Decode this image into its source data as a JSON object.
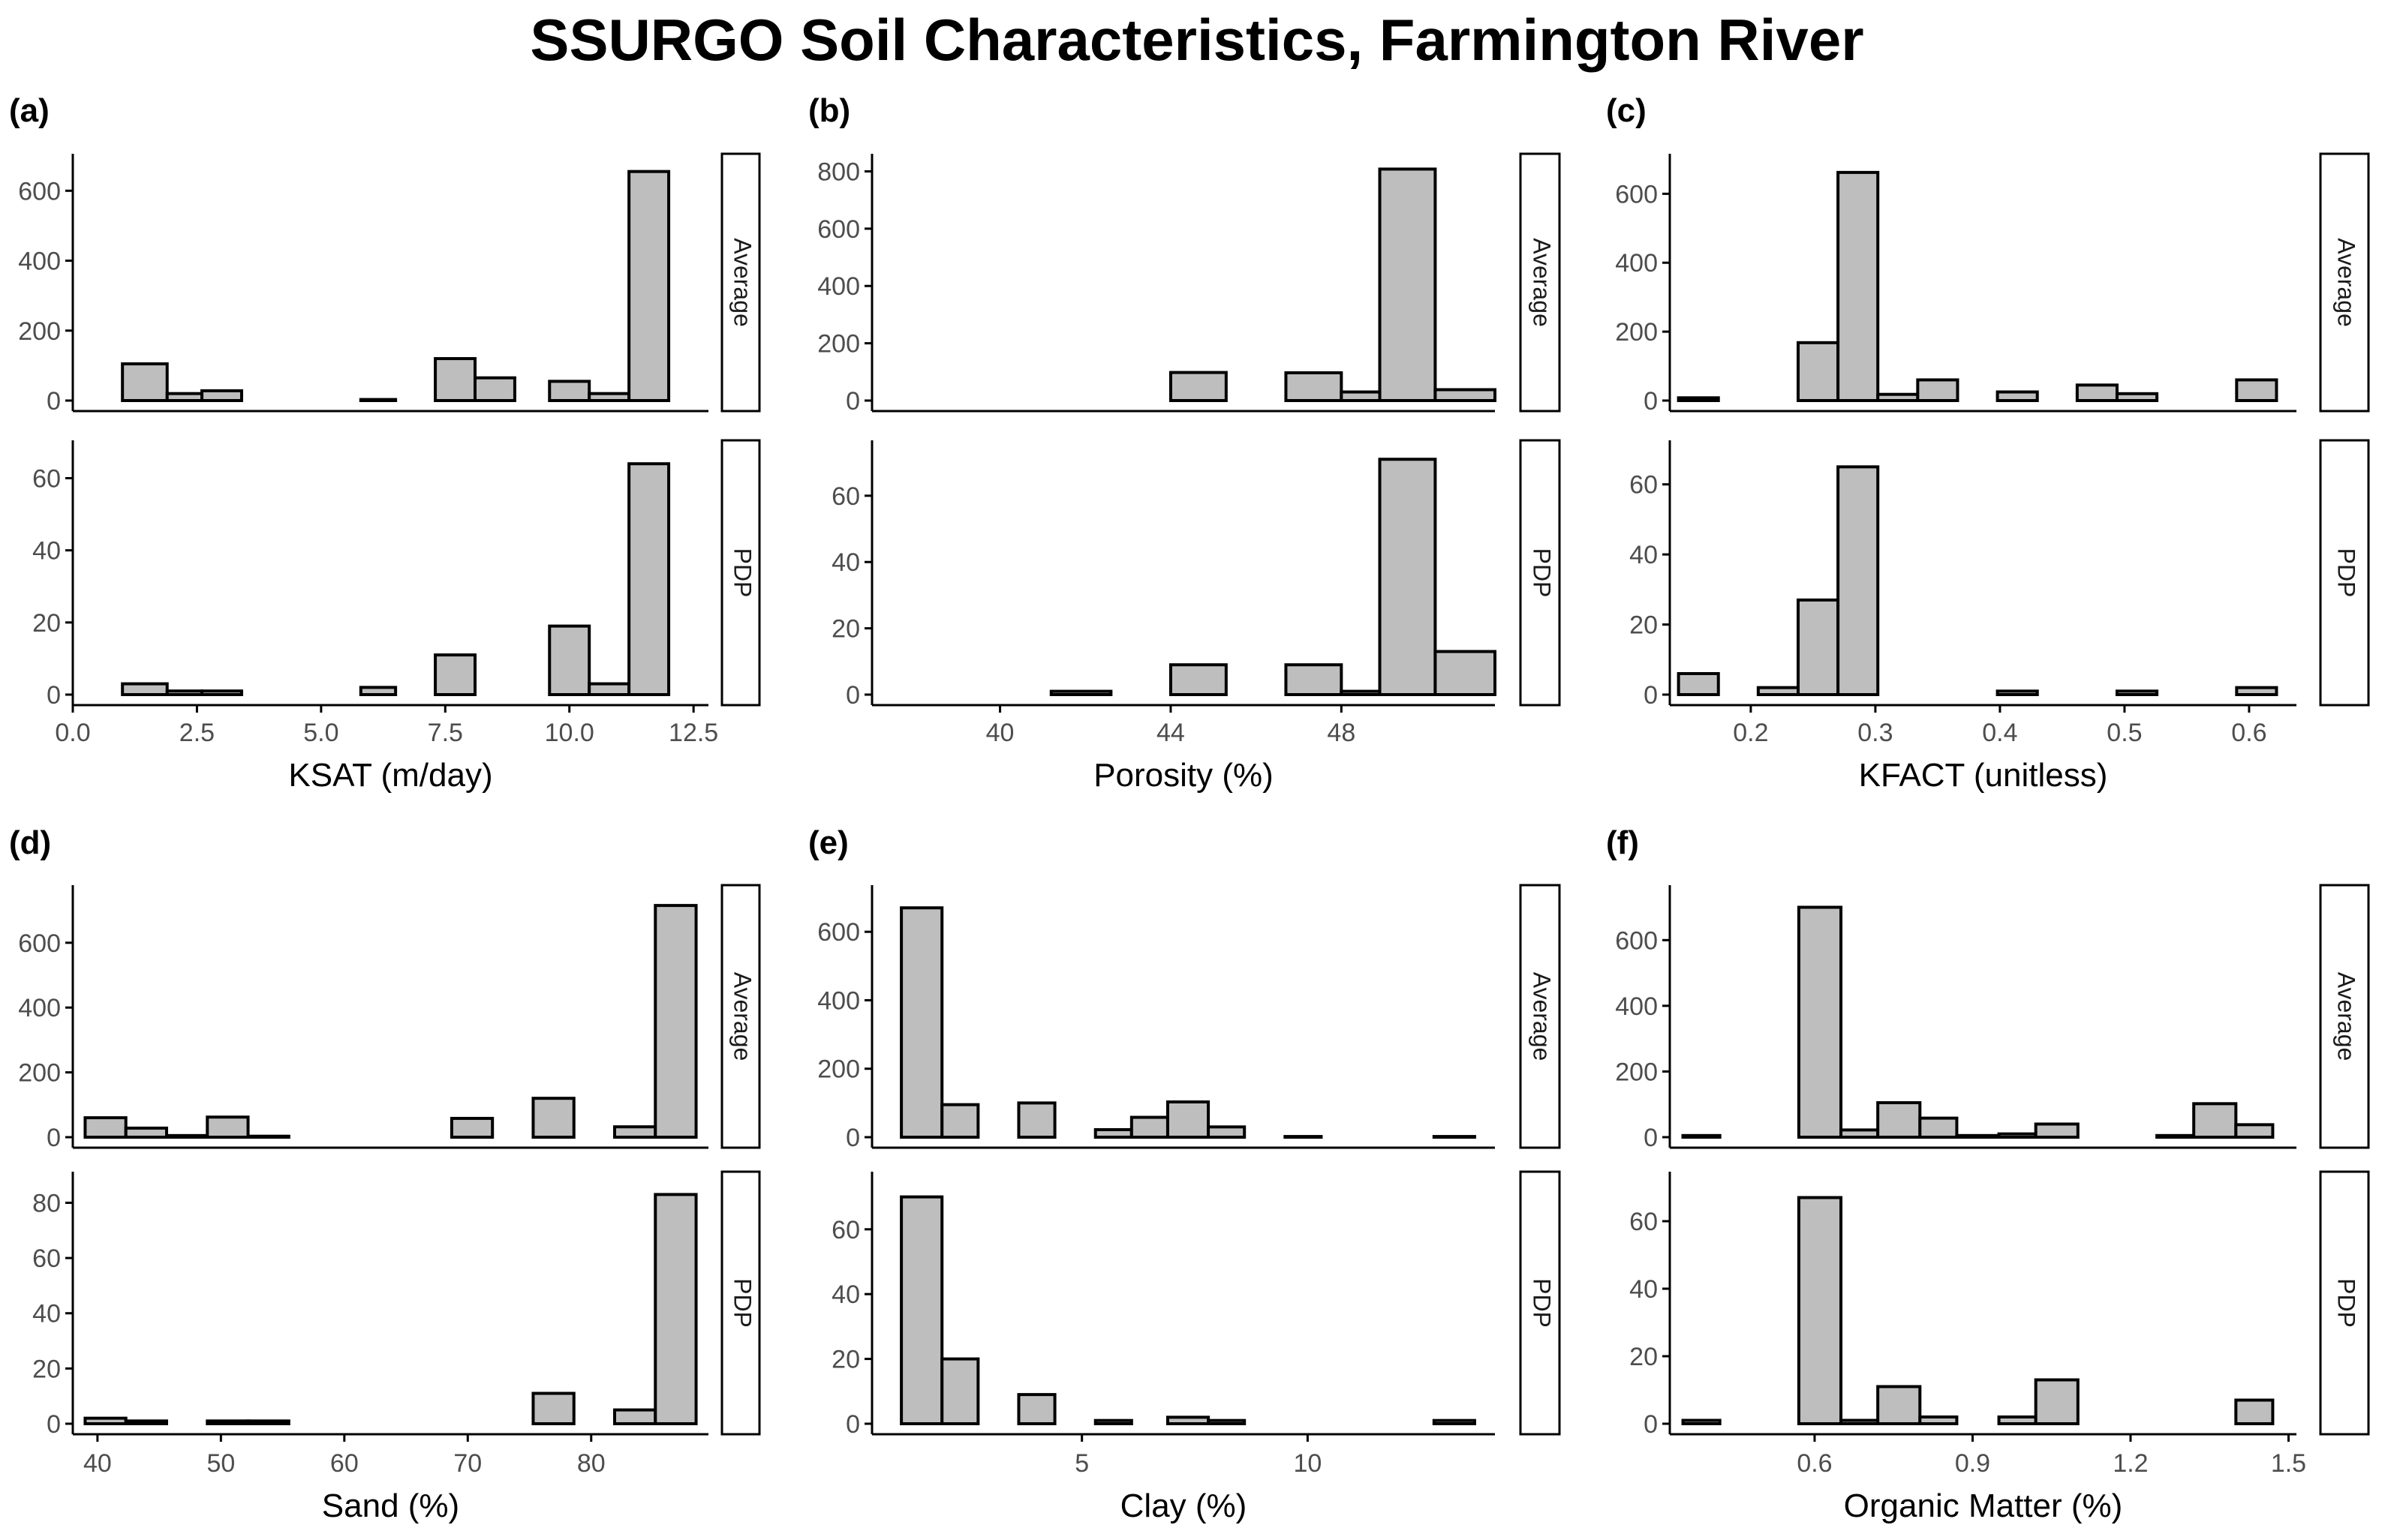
{
  "title": "SSURGO Soil Characteristics, Farmington River",
  "colors": {
    "bar_fill": "#bebebe",
    "bar_stroke": "#000000",
    "axis": "#000000",
    "tick_text": "#4d4d4d"
  },
  "chart_data": [
    {
      "type": "bar",
      "panel_label": "(a)",
      "xlabel": "KSAT (m/day)",
      "xlim": [
        0,
        12.8
      ],
      "xticks": [
        0.0,
        2.5,
        5.0,
        7.5,
        10.0,
        12.5
      ],
      "xtick_labels": [
        "0.0",
        "2.5",
        "5.0",
        "7.5",
        "10.0",
        "12.5"
      ],
      "facets": [
        {
          "strip": "Average",
          "ylim": [
            0,
            680
          ],
          "yticks": [
            0,
            200,
            400,
            600
          ],
          "bins": [
            [
              0.3,
              1.0,
              0
            ],
            [
              1.0,
              1.9,
              105
            ],
            [
              1.9,
              2.6,
              20
            ],
            [
              2.6,
              3.4,
              28
            ],
            [
              3.4,
              4.2,
              0
            ],
            [
              4.2,
              5.0,
              0
            ],
            [
              5.0,
              5.8,
              0
            ],
            [
              5.8,
              6.5,
              3
            ],
            [
              6.5,
              7.3,
              0
            ],
            [
              7.3,
              8.1,
              120
            ],
            [
              8.1,
              8.9,
              65
            ],
            [
              8.9,
              9.6,
              0
            ],
            [
              9.6,
              10.4,
              55
            ],
            [
              10.4,
              11.2,
              20
            ],
            [
              11.2,
              12.0,
              655
            ]
          ]
        },
        {
          "strip": "PDP",
          "ylim": [
            0,
            68
          ],
          "yticks": [
            0,
            20,
            40,
            60
          ],
          "bins": [
            [
              0.3,
              1.0,
              0
            ],
            [
              1.0,
              1.9,
              3
            ],
            [
              1.9,
              2.6,
              1
            ],
            [
              2.6,
              3.4,
              1
            ],
            [
              3.4,
              4.2,
              0
            ],
            [
              4.2,
              5.0,
              0
            ],
            [
              5.0,
              5.8,
              0
            ],
            [
              5.8,
              6.5,
              2
            ],
            [
              6.5,
              7.3,
              0
            ],
            [
              7.3,
              8.1,
              11
            ],
            [
              8.1,
              8.9,
              0
            ],
            [
              8.9,
              9.6,
              0
            ],
            [
              9.6,
              10.4,
              19
            ],
            [
              10.4,
              11.2,
              3
            ],
            [
              11.2,
              12.0,
              64
            ]
          ]
        }
      ]
    },
    {
      "type": "bar",
      "panel_label": "(b)",
      "xlabel": "Porosity (%)",
      "xlim": [
        37.0,
        51.6
      ],
      "xticks": [
        40,
        44,
        48
      ],
      "xtick_labels": [
        "40",
        "44",
        "48"
      ],
      "facets": [
        {
          "strip": "Average",
          "ylim": [
            0,
            830
          ],
          "yticks": [
            0,
            200,
            400,
            600,
            800
          ],
          "bins": [
            [
              37.0,
              38.4,
              0
            ],
            [
              38.4,
              39.8,
              0
            ],
            [
              39.8,
              41.2,
              0
            ],
            [
              41.2,
              42.6,
              0
            ],
            [
              42.6,
              44.0,
              0
            ],
            [
              44.0,
              45.3,
              98
            ],
            [
              45.3,
              46.7,
              0
            ],
            [
              46.7,
              48.0,
              97
            ],
            [
              48.0,
              48.9,
              30
            ],
            [
              48.9,
              50.2,
              808
            ],
            [
              50.2,
              51.6,
              38
            ]
          ]
        },
        {
          "strip": "PDP",
          "ylim": [
            0,
            74
          ],
          "yticks": [
            0,
            20,
            40,
            60
          ],
          "bins": [
            [
              37.0,
              38.4,
              0
            ],
            [
              38.4,
              39.8,
              0
            ],
            [
              39.8,
              41.2,
              0
            ],
            [
              41.2,
              42.6,
              1
            ],
            [
              42.6,
              44.0,
              0
            ],
            [
              44.0,
              45.3,
              9
            ],
            [
              45.3,
              46.7,
              0
            ],
            [
              46.7,
              48.0,
              9
            ],
            [
              48.0,
              48.9,
              1
            ],
            [
              48.9,
              50.2,
              71
            ],
            [
              50.2,
              51.6,
              13
            ]
          ]
        }
      ]
    },
    {
      "type": "bar",
      "panel_label": "(c)",
      "xlabel": "KFACT (unitless)",
      "xlim": [
        0.135,
        0.638
      ],
      "xticks": [
        0.2,
        0.3,
        0.4,
        0.5,
        0.6
      ],
      "xtick_labels": [
        "0.2",
        "0.3",
        "0.4",
        "0.5",
        "0.6"
      ],
      "facets": [
        {
          "strip": "Average",
          "ylim": [
            0,
            690
          ],
          "yticks": [
            0,
            200,
            400,
            600
          ],
          "bins": [
            [
              0.142,
              0.174,
              8
            ],
            [
              0.174,
              0.206,
              0
            ],
            [
              0.206,
              0.238,
              0
            ],
            [
              0.238,
              0.27,
              168
            ],
            [
              0.27,
              0.302,
              662
            ],
            [
              0.302,
              0.334,
              18
            ],
            [
              0.334,
              0.366,
              60
            ],
            [
              0.366,
              0.398,
              0
            ],
            [
              0.398,
              0.43,
              25
            ],
            [
              0.43,
              0.462,
              0
            ],
            [
              0.462,
              0.494,
              45
            ],
            [
              0.494,
              0.526,
              20
            ],
            [
              0.526,
              0.558,
              0
            ],
            [
              0.558,
              0.59,
              0
            ],
            [
              0.59,
              0.622,
              60
            ]
          ]
        },
        {
          "strip": "PDP",
          "ylim": [
            0,
            70
          ],
          "yticks": [
            0,
            20,
            40,
            60
          ],
          "bins": [
            [
              0.142,
              0.174,
              6
            ],
            [
              0.174,
              0.206,
              0
            ],
            [
              0.206,
              0.238,
              2
            ],
            [
              0.238,
              0.27,
              27
            ],
            [
              0.27,
              0.302,
              65
            ],
            [
              0.302,
              0.334,
              0
            ],
            [
              0.334,
              0.366,
              0
            ],
            [
              0.366,
              0.398,
              0
            ],
            [
              0.398,
              0.43,
              1
            ],
            [
              0.43,
              0.462,
              0
            ],
            [
              0.462,
              0.494,
              0
            ],
            [
              0.494,
              0.526,
              1
            ],
            [
              0.526,
              0.558,
              0
            ],
            [
              0.558,
              0.59,
              0
            ],
            [
              0.59,
              0.622,
              2
            ]
          ]
        }
      ]
    },
    {
      "type": "bar",
      "panel_label": "(d)",
      "xlabel": "Sand (%)",
      "xlim": [
        38.0,
        89.5
      ],
      "xticks": [
        40,
        50,
        60,
        70,
        80
      ],
      "xtick_labels": [
        "40",
        "50",
        "60",
        "70",
        "80"
      ],
      "facets": [
        {
          "strip": "Average",
          "ylim": [
            0,
            750
          ],
          "yticks": [
            0,
            200,
            400,
            600
          ],
          "bins": [
            [
              39.0,
              42.3,
              60
            ],
            [
              42.3,
              45.6,
              28
            ],
            [
              45.6,
              48.9,
              5
            ],
            [
              48.9,
              52.2,
              62
            ],
            [
              52.2,
              55.5,
              3
            ],
            [
              55.5,
              58.8,
              0
            ],
            [
              58.8,
              62.1,
              0
            ],
            [
              62.1,
              65.4,
              0
            ],
            [
              65.4,
              68.7,
              0
            ],
            [
              68.7,
              72.0,
              58
            ],
            [
              72.0,
              75.3,
              0
            ],
            [
              75.3,
              78.6,
              120
            ],
            [
              78.6,
              81.9,
              0
            ],
            [
              81.9,
              85.2,
              32
            ],
            [
              85.2,
              88.5,
              715
            ]
          ]
        },
        {
          "strip": "PDP",
          "ylim": [
            0,
            88
          ],
          "yticks": [
            0,
            20,
            40,
            60,
            80
          ],
          "bins": [
            [
              39.0,
              42.3,
              2
            ],
            [
              42.3,
              45.6,
              1
            ],
            [
              45.6,
              48.9,
              0
            ],
            [
              48.9,
              52.2,
              1
            ],
            [
              52.2,
              55.5,
              1
            ],
            [
              55.5,
              58.8,
              0
            ],
            [
              58.8,
              62.1,
              0
            ],
            [
              62.1,
              65.4,
              0
            ],
            [
              65.4,
              68.7,
              0
            ],
            [
              68.7,
              72.0,
              0
            ],
            [
              72.0,
              75.3,
              0
            ],
            [
              75.3,
              78.6,
              11
            ],
            [
              78.6,
              81.9,
              0
            ],
            [
              81.9,
              85.2,
              5
            ],
            [
              85.2,
              88.5,
              83
            ]
          ]
        }
      ]
    },
    {
      "type": "bar",
      "panel_label": "(e)",
      "xlabel": "Clay (%)",
      "xlim": [
        0.35,
        14.15
      ],
      "xticks": [
        5,
        10
      ],
      "xtick_labels": [
        "5",
        "10"
      ],
      "facets": [
        {
          "strip": "Average",
          "ylim": [
            0,
            710
          ],
          "yticks": [
            0,
            200,
            400,
            600
          ],
          "bins": [
            [
              1.0,
              1.9,
              670
            ],
            [
              1.9,
              2.7,
              95
            ],
            [
              2.7,
              3.6,
              0
            ],
            [
              3.6,
              4.4,
              100
            ],
            [
              4.4,
              5.3,
              0
            ],
            [
              5.3,
              6.1,
              22
            ],
            [
              6.1,
              6.9,
              58
            ],
            [
              6.9,
              7.8,
              103
            ],
            [
              7.8,
              8.6,
              30
            ],
            [
              8.6,
              9.5,
              0
            ],
            [
              9.5,
              10.3,
              2
            ],
            [
              10.3,
              11.2,
              0
            ],
            [
              11.2,
              12.0,
              0
            ],
            [
              12.0,
              12.8,
              0
            ],
            [
              12.8,
              13.7,
              2
            ]
          ]
        },
        {
          "strip": "PDP",
          "ylim": [
            0,
            75
          ],
          "yticks": [
            0,
            20,
            40,
            60
          ],
          "bins": [
            [
              1.0,
              1.9,
              70
            ],
            [
              1.9,
              2.7,
              20
            ],
            [
              2.7,
              3.6,
              0
            ],
            [
              3.6,
              4.4,
              9
            ],
            [
              4.4,
              5.3,
              0
            ],
            [
              5.3,
              6.1,
              1
            ],
            [
              6.1,
              6.9,
              0
            ],
            [
              6.9,
              7.8,
              2
            ],
            [
              7.8,
              8.6,
              1
            ],
            [
              8.6,
              9.5,
              0
            ],
            [
              9.5,
              10.3,
              0
            ],
            [
              10.3,
              11.2,
              0
            ],
            [
              11.2,
              12.0,
              0
            ],
            [
              12.0,
              12.8,
              0
            ],
            [
              12.8,
              13.7,
              1
            ]
          ]
        }
      ]
    },
    {
      "type": "bar",
      "panel_label": "(f)",
      "xlabel": "Organic Matter (%)",
      "xlim": [
        0.325,
        1.515
      ],
      "xticks": [
        0.6,
        0.9,
        1.2,
        1.5
      ],
      "xtick_labels": [
        "0.6",
        "0.9",
        "1.2",
        "1.5"
      ],
      "facets": [
        {
          "strip": "Average",
          "ylim": [
            0,
            740
          ],
          "yticks": [
            0,
            200,
            400,
            600
          ],
          "bins": [
            [
              0.35,
              0.42,
              5
            ],
            [
              0.42,
              0.5,
              0
            ],
            [
              0.5,
              0.57,
              0
            ],
            [
              0.57,
              0.65,
              700
            ],
            [
              0.65,
              0.72,
              22
            ],
            [
              0.72,
              0.8,
              105
            ],
            [
              0.8,
              0.87,
              58
            ],
            [
              0.87,
              0.95,
              5
            ],
            [
              0.95,
              1.02,
              10
            ],
            [
              1.02,
              1.1,
              40
            ],
            [
              1.1,
              1.17,
              0
            ],
            [
              1.17,
              1.25,
              0
            ],
            [
              1.25,
              1.32,
              5
            ],
            [
              1.32,
              1.4,
              102
            ],
            [
              1.4,
              1.47,
              38
            ]
          ]
        },
        {
          "strip": "PDP",
          "ylim": [
            0,
            72
          ],
          "yticks": [
            0,
            20,
            40,
            60
          ],
          "bins": [
            [
              0.35,
              0.42,
              1
            ],
            [
              0.42,
              0.5,
              0
            ],
            [
              0.5,
              0.57,
              0
            ],
            [
              0.57,
              0.65,
              67
            ],
            [
              0.65,
              0.72,
              1
            ],
            [
              0.72,
              0.8,
              11
            ],
            [
              0.8,
              0.87,
              2
            ],
            [
              0.87,
              0.95,
              0
            ],
            [
              0.95,
              1.02,
              2
            ],
            [
              1.02,
              1.1,
              13
            ],
            [
              1.1,
              1.17,
              0
            ],
            [
              1.17,
              1.25,
              0
            ],
            [
              1.25,
              1.32,
              0
            ],
            [
              1.32,
              1.4,
              0
            ],
            [
              1.4,
              1.47,
              7
            ]
          ]
        }
      ]
    }
  ]
}
